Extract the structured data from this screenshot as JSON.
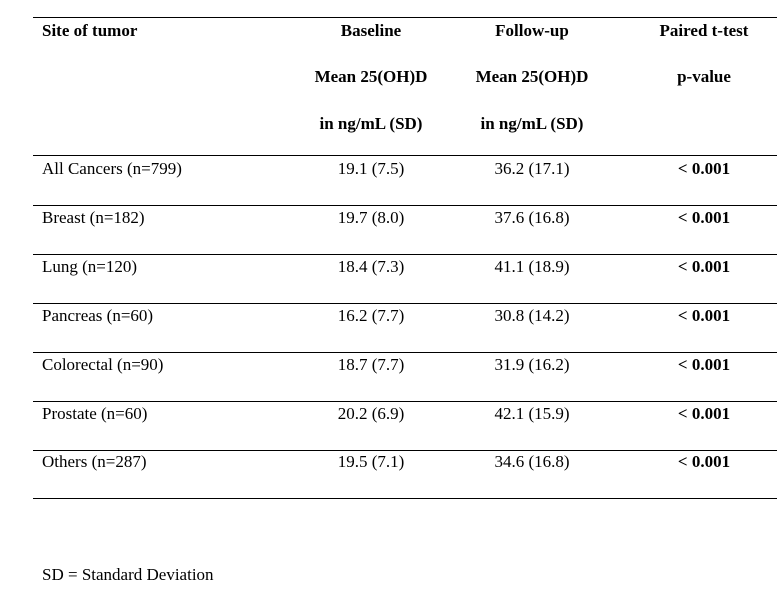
{
  "table": {
    "headers": [
      {
        "lines": [
          "Site of tumor"
        ]
      },
      {
        "lines": [
          "Baseline",
          "Mean 25(OH)D",
          "in ng/mL (SD)"
        ]
      },
      {
        "lines": [
          "Follow-up",
          "Mean 25(OH)D",
          "in ng/mL (SD)"
        ]
      },
      {
        "lines": [
          "Paired t-test",
          "p-value"
        ]
      }
    ],
    "rows": [
      {
        "site": "All Cancers (n=799)",
        "baseline": "19.1 (7.5)",
        "followup": "36.2 (17.1)",
        "p": "< 0.001"
      },
      {
        "site": "Breast (n=182)",
        "baseline": "19.7 (8.0)",
        "followup": "37.6 (16.8)",
        "p": "< 0.001"
      },
      {
        "site": "Lung (n=120)",
        "baseline": "18.4 (7.3)",
        "followup": "41.1 (18.9)",
        "p": "< 0.001"
      },
      {
        "site": "Pancreas (n=60)",
        "baseline": "16.2 (7.7)",
        "followup": "30.8 (14.2)",
        "p": "< 0.001"
      },
      {
        "site": "Colorectal (n=90)",
        "baseline": "18.7 (7.7)",
        "followup": "31.9 (16.2)",
        "p": "< 0.001"
      },
      {
        "site": "Prostate (n=60)",
        "baseline": "20.2 (6.9)",
        "followup": "42.1 (15.9)",
        "p": "< 0.001"
      },
      {
        "site": "Others (n=287)",
        "baseline": "19.5 (7.1)",
        "followup": "34.6 (16.8)",
        "p": "< 0.001"
      }
    ]
  },
  "footnote": "SD = Standard Deviation"
}
